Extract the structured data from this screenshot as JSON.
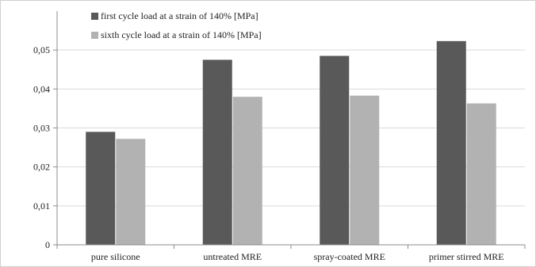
{
  "chart_data": {
    "type": "bar",
    "title": "",
    "xlabel": "",
    "ylabel": "",
    "categories": [
      "pure silicone",
      "untreated MRE",
      "spray-coated MRE",
      "primer stirred MRE"
    ],
    "series": [
      {
        "name": "first cycle load at a strain of 140% [MPa]",
        "color": "#595959",
        "values": [
          0.029,
          0.0475,
          0.0485,
          0.0523
        ]
      },
      {
        "name": "sixth cycle load at a strain of 140% [MPa]",
        "color": "#b2b2b2",
        "values": [
          0.0272,
          0.038,
          0.0383,
          0.0363
        ]
      }
    ],
    "ylim": [
      0,
      0.06
    ],
    "yticks": [
      0,
      0.01,
      0.02,
      0.03,
      0.04,
      0.05
    ],
    "ytick_labels": [
      "0",
      "0,01",
      "0,02",
      "0,03",
      "0,04",
      "0,05"
    ],
    "grid": "horizontal",
    "legend_position": "top-left",
    "colors": {
      "axis": "#8c8c8c",
      "grid": "#d9d9d9",
      "background": "#ffffff"
    }
  }
}
